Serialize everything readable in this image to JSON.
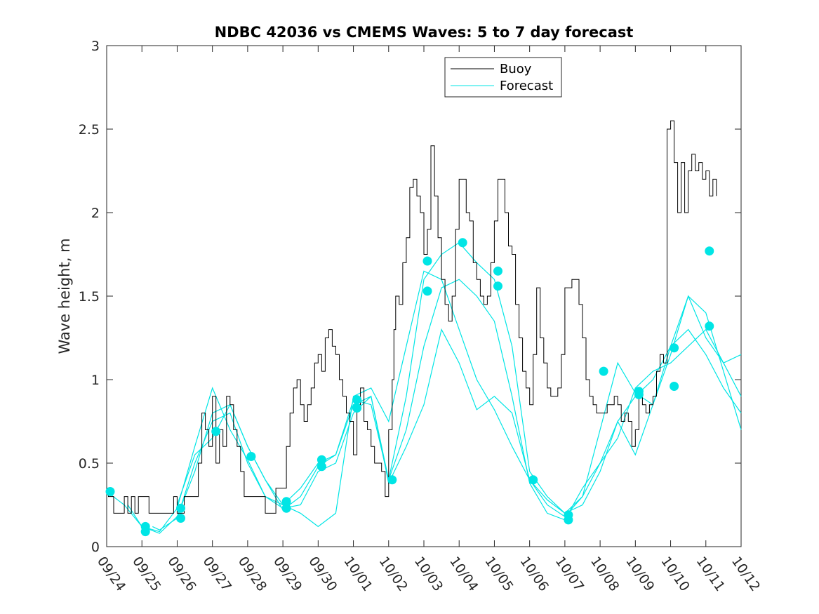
{
  "chart_data": {
    "type": "line",
    "title": "NDBC 42036 vs CMEMS Waves: 5 to 7 day forecast",
    "xlabel": "",
    "ylabel": "Wave height, m",
    "ylim": [
      0,
      3
    ],
    "yticks": [
      "0",
      "0.5",
      "1",
      "1.5",
      "2",
      "2.5",
      "3"
    ],
    "xlim_days": [
      0,
      18
    ],
    "x_tick_labels": [
      "09/24",
      "09/25",
      "09/26",
      "09/27",
      "09/28",
      "09/29",
      "09/30",
      "10/01",
      "10/02",
      "10/03",
      "10/04",
      "10/05",
      "10/06",
      "10/07",
      "10/08",
      "10/09",
      "10/10",
      "10/11",
      "10/12"
    ],
    "x_units": "days since 09/24 00:00",
    "legend": {
      "placement": "top-right-center",
      "entries": [
        {
          "label": "Buoy",
          "color": "#000000"
        },
        {
          "label": "Forecast",
          "color": "#00e5e5"
        }
      ]
    },
    "colors": {
      "buoy": "#000000",
      "forecast": "#00e5e5"
    },
    "buoy": {
      "x": [
        0,
        0.05,
        0.1,
        0.2,
        0.3,
        0.5,
        0.6,
        0.7,
        0.8,
        0.9,
        1.0,
        1.2,
        1.3,
        1.4,
        1.6,
        1.8,
        1.9,
        2.0,
        2.2,
        2.5,
        2.6,
        2.7,
        2.8,
        2.9,
        3.0,
        3.1,
        3.2,
        3.3,
        3.4,
        3.5,
        3.6,
        3.7,
        3.8,
        3.9,
        4.0,
        4.3,
        4.5,
        4.7,
        4.8,
        4.9,
        5.0,
        5.1,
        5.2,
        5.3,
        5.4,
        5.5,
        5.6,
        5.7,
        5.8,
        5.9,
        6.0,
        6.1,
        6.2,
        6.3,
        6.4,
        6.5,
        6.6,
        6.7,
        6.8,
        6.9,
        7.0,
        7.1,
        7.2,
        7.3,
        7.4,
        7.5,
        7.6,
        7.7,
        7.8,
        7.9,
        8.0,
        8.1,
        8.15,
        8.2,
        8.3,
        8.4,
        8.5,
        8.6,
        8.7,
        8.8,
        8.9,
        9.0,
        9.1,
        9.2,
        9.3,
        9.4,
        9.5,
        9.6,
        9.7,
        9.8,
        9.9,
        10.0,
        10.1,
        10.2,
        10.3,
        10.4,
        10.5,
        10.6,
        10.7,
        10.8,
        10.9,
        11.0,
        11.1,
        11.2,
        11.3,
        11.4,
        11.5,
        11.6,
        11.7,
        11.8,
        11.9,
        12.0,
        12.1,
        12.2,
        12.3,
        12.4,
        12.5,
        12.6,
        12.7,
        12.8,
        12.9,
        13.0,
        13.2,
        13.4,
        13.5,
        13.6,
        13.7,
        13.8,
        13.9,
        14.0,
        14.2,
        14.4,
        14.5,
        14.6,
        14.7,
        14.8,
        14.9,
        15.0,
        15.1,
        15.2,
        15.3,
        15.4,
        15.5,
        15.6,
        15.7,
        15.8,
        15.9,
        16.0,
        16.1,
        16.2,
        16.3,
        16.4,
        16.5,
        16.6,
        16.7,
        16.8,
        16.9,
        17.0,
        17.1,
        17.2,
        17.3
      ],
      "y": [
        0.35,
        0.3,
        0.3,
        0.2,
        0.2,
        0.3,
        0.2,
        0.3,
        0.2,
        0.3,
        0.3,
        0.2,
        0.2,
        0.2,
        0.2,
        0.2,
        0.3,
        0.2,
        0.3,
        0.3,
        0.5,
        0.8,
        0.7,
        0.6,
        0.9,
        0.5,
        0.7,
        0.6,
        0.9,
        0.85,
        0.7,
        0.6,
        0.45,
        0.3,
        0.3,
        0.3,
        0.2,
        0.2,
        0.35,
        0.35,
        0.35,
        0.6,
        0.8,
        0.95,
        1.0,
        0.85,
        0.75,
        0.85,
        0.95,
        1.1,
        1.15,
        1.05,
        1.25,
        1.3,
        1.2,
        1.15,
        1.0,
        0.9,
        0.8,
        0.75,
        0.55,
        0.85,
        0.95,
        0.75,
        0.7,
        0.6,
        0.5,
        0.5,
        0.45,
        0.3,
        0.7,
        1.0,
        1.3,
        1.5,
        1.45,
        1.7,
        1.85,
        2.15,
        2.2,
        2.1,
        2.0,
        1.75,
        1.9,
        2.4,
        2.1,
        1.85,
        1.6,
        1.45,
        1.35,
        1.5,
        1.9,
        2.2,
        2.2,
        2.0,
        1.95,
        1.7,
        1.6,
        1.5,
        1.45,
        1.5,
        1.7,
        1.95,
        2.2,
        2.2,
        2.0,
        1.8,
        1.75,
        1.45,
        1.25,
        1.05,
        0.95,
        0.85,
        1.15,
        1.55,
        1.25,
        1.1,
        0.95,
        0.9,
        0.9,
        0.95,
        1.15,
        1.55,
        1.6,
        1.45,
        1.25,
        1.0,
        0.9,
        0.85,
        0.8,
        0.8,
        0.85,
        0.9,
        0.85,
        0.75,
        0.8,
        0.75,
        0.6,
        0.7,
        0.9,
        0.85,
        0.8,
        0.85,
        0.9,
        1.05,
        1.15,
        1.1,
        2.5,
        2.55,
        2.3,
        2.0,
        2.3,
        2.0,
        2.25,
        2.35,
        2.25,
        2.3,
        2.2,
        2.25,
        2.1,
        2.2,
        2.1
      ]
    },
    "forecast_series": [
      {
        "name": "Forecast",
        "x": [
          0,
          0.5,
          1.0,
          1.5,
          2.0,
          2.5,
          3.0,
          3.5,
          4.0,
          4.5,
          5.0,
          5.5,
          6.0,
          6.5,
          7.0,
          7.5,
          8.0,
          8.5,
          9.0,
          9.5,
          10.0,
          10.5,
          11.0,
          11.5,
          12.0,
          12.5,
          13.0,
          13.5,
          14.0,
          14.5,
          15.0,
          15.5,
          16.0,
          16.5,
          17.0,
          17.5,
          18.0
        ],
        "y": [
          0.33,
          0.25,
          0.12,
          0.09,
          0.23,
          0.6,
          0.95,
          0.7,
          0.52,
          0.3,
          0.25,
          0.35,
          0.5,
          0.55,
          0.85,
          0.9,
          0.4,
          0.9,
          1.6,
          1.75,
          1.82,
          1.7,
          1.6,
          1.2,
          0.45,
          0.3,
          0.2,
          0.3,
          0.7,
          1.1,
          0.92,
          0.85,
          1.15,
          1.5,
          1.4,
          1.05,
          0.7
        ]
      },
      {
        "name": "Forecast",
        "x": [
          0.6,
          1.0,
          1.5,
          2.0,
          2.5,
          3.0,
          3.5,
          4.0,
          4.5,
          5.0,
          5.5,
          6.0,
          6.5,
          7.0,
          7.5,
          8.0,
          8.5,
          9.0,
          9.5,
          10.0,
          10.5,
          11.0,
          11.5,
          12.0,
          12.5,
          13.0,
          13.5,
          14.0,
          14.5,
          15.0,
          15.5,
          16.0,
          16.5,
          17.0,
          17.5,
          18.0
        ],
        "y": [
          0.25,
          0.12,
          0.08,
          0.18,
          0.45,
          0.8,
          0.85,
          0.6,
          0.4,
          0.22,
          0.3,
          0.48,
          0.55,
          0.88,
          0.85,
          0.4,
          0.7,
          1.2,
          1.55,
          1.6,
          1.5,
          1.35,
          0.9,
          0.38,
          0.2,
          0.16,
          0.35,
          0.5,
          0.75,
          0.9,
          1.0,
          1.2,
          1.3,
          1.15,
          0.95,
          0.8
        ]
      },
      {
        "name": "Forecast",
        "x": [
          1.3,
          1.5,
          2.0,
          2.5,
          3.0,
          3.5,
          4.0,
          4.5,
          5.0,
          5.5,
          6.0,
          6.5,
          7.0,
          7.5,
          8.0,
          8.5,
          9.0,
          9.5,
          10.0,
          10.5,
          11.0,
          11.5,
          12.0,
          12.5,
          13.0,
          13.5,
          14.0,
          14.5,
          15.0,
          15.5,
          16.0,
          16.5,
          17.0,
          17.5,
          18.0
        ],
        "y": [
          0.12,
          0.1,
          0.17,
          0.5,
          0.75,
          0.8,
          0.5,
          0.3,
          0.23,
          0.25,
          0.45,
          0.5,
          0.8,
          0.9,
          0.38,
          0.6,
          0.85,
          1.3,
          1.1,
          0.82,
          0.9,
          0.8,
          0.4,
          0.25,
          0.18,
          0.3,
          0.5,
          0.65,
          0.95,
          1.05,
          1.1,
          1.2,
          1.3,
          1.1,
          0.9
        ]
      },
      {
        "name": "Forecast",
        "x": [
          2.0,
          2.5,
          3.0,
          3.5,
          4.0,
          4.5,
          5.0,
          5.5,
          6.0,
          6.5,
          7.0,
          7.5,
          8.0,
          8.5,
          9.0,
          9.5,
          10.0,
          10.5,
          11.0,
          11.5,
          12.0,
          12.5,
          13.0,
          13.5,
          14.0,
          14.5,
          15.0,
          15.5,
          16.0,
          16.5,
          17.0,
          17.5,
          18.0
        ],
        "y": [
          0.25,
          0.55,
          0.65,
          0.85,
          0.6,
          0.4,
          0.25,
          0.2,
          0.12,
          0.2,
          0.9,
          0.95,
          0.75,
          1.2,
          1.65,
          1.6,
          1.3,
          1.0,
          0.82,
          0.6,
          0.4,
          0.28,
          0.2,
          0.25,
          0.45,
          0.75,
          0.55,
          0.85,
          1.2,
          1.5,
          1.25,
          1.1,
          1.15
        ]
      }
    ],
    "markers": {
      "x": [
        0.1,
        1.1,
        1.1,
        2.1,
        2.1,
        3.1,
        4.1,
        5.1,
        5.1,
        6.1,
        6.1,
        7.1,
        7.1,
        8.1,
        9.1,
        9.1,
        10.1,
        11.1,
        11.1,
        12.1,
        13.1,
        13.1,
        14.1,
        15.1,
        15.1,
        16.1,
        16.1,
        17.1,
        17.1
      ],
      "y": [
        0.33,
        0.12,
        0.09,
        0.23,
        0.17,
        0.69,
        0.54,
        0.27,
        0.23,
        0.52,
        0.48,
        0.88,
        0.83,
        0.4,
        1.71,
        1.53,
        1.82,
        1.65,
        1.56,
        0.4,
        0.19,
        0.16,
        1.05,
        0.93,
        0.91,
        1.19,
        0.96,
        1.77,
        1.32
      ]
    }
  }
}
